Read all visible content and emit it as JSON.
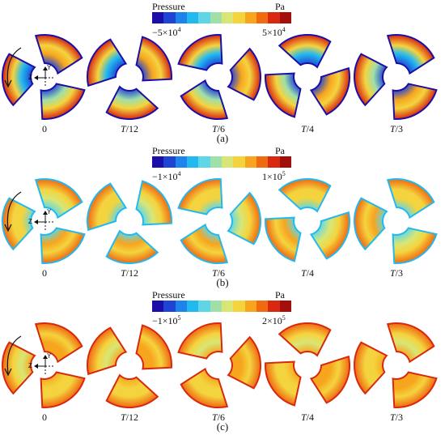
{
  "colorbar": [
    "#1b0fa8",
    "#1f44d4",
    "#1d84ec",
    "#22b9f0",
    "#5fd6e6",
    "#9fe0a8",
    "#d8e676",
    "#f4d43e",
    "#f7a51f",
    "#f06a12",
    "#d8280f",
    "#a3100c"
  ],
  "legend_title": "Pressure",
  "legend_unit": "Pa",
  "axes": {
    "y": "Y",
    "z": "Z"
  },
  "panels": [
    {
      "caption": "(a)",
      "min_label": "−5×10",
      "min_exp": "4",
      "max_label": "5×10",
      "max_exp": "4",
      "time_labels": [
        "0",
        "T/12",
        "T/6",
        "T/4",
        "T/3"
      ],
      "rotors": [
        {
          "time": "0"
        },
        {
          "time": "T/12"
        },
        {
          "time": "T/6"
        },
        {
          "time": "T/4"
        },
        {
          "time": "T/3"
        }
      ]
    },
    {
      "caption": "(b)",
      "min_label": "−1×10",
      "min_exp": "4",
      "max_label": "1×10",
      "max_exp": "5",
      "time_labels": [
        "0",
        "T/12",
        "T/6",
        "T/4",
        "T/3"
      ],
      "rotors": [
        {
          "time": "0"
        },
        {
          "time": "T/12"
        },
        {
          "time": "T/6"
        },
        {
          "time": "T/4"
        },
        {
          "time": "T/3"
        }
      ]
    },
    {
      "caption": "(c)",
      "min_label": "−1×10",
      "min_exp": "5",
      "max_label": "2×10",
      "max_exp": "5",
      "time_labels": [
        "0",
        "T/12",
        "T/6",
        "T/4",
        "T/3"
      ],
      "rotors": [
        {
          "time": "0"
        },
        {
          "time": "T/12"
        },
        {
          "time": "T/6"
        },
        {
          "time": "T/4"
        },
        {
          "time": "T/3"
        }
      ]
    }
  ]
}
